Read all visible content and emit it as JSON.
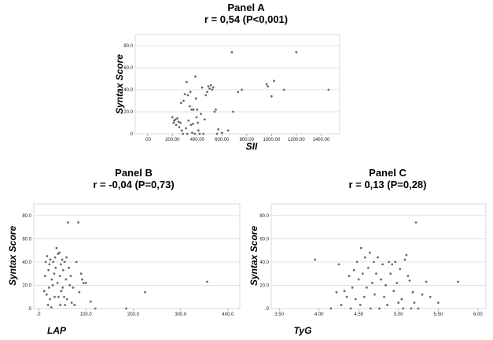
{
  "chart_data": [
    {
      "type": "scatter",
      "panel": "Panel A",
      "stat": "r = 0,54 (P<0,001)",
      "xlabel": "SII",
      "ylabel": "Syntax Score",
      "xlim": [
        -100,
        1550
      ],
      "ylim": [
        0,
        90
      ],
      "xticks": [
        0,
        200,
        400,
        600,
        800,
        1000,
        1200,
        1400
      ],
      "xtick_labels": [
        ".00",
        "200.00",
        "400.00",
        "600.00",
        "800.00",
        "1000.00",
        "1200.00",
        "1400.00"
      ],
      "yticks": [
        0,
        20,
        40,
        60,
        80
      ],
      "ytick_labels": [
        ".0",
        "20.0",
        "40.0",
        "60.0",
        "80.0"
      ],
      "grid": "horizontal",
      "points": [
        [
          200,
          15
        ],
        [
          210,
          10
        ],
        [
          215,
          12
        ],
        [
          225,
          13
        ],
        [
          230,
          8
        ],
        [
          240,
          14
        ],
        [
          250,
          11
        ],
        [
          255,
          6
        ],
        [
          265,
          10
        ],
        [
          270,
          28
        ],
        [
          275,
          3
        ],
        [
          285,
          0
        ],
        [
          290,
          30
        ],
        [
          300,
          36
        ],
        [
          310,
          5
        ],
        [
          315,
          47
        ],
        [
          320,
          0
        ],
        [
          325,
          35
        ],
        [
          330,
          12
        ],
        [
          340,
          25
        ],
        [
          345,
          38
        ],
        [
          350,
          8
        ],
        [
          355,
          22
        ],
        [
          360,
          1
        ],
        [
          365,
          9
        ],
        [
          370,
          22
        ],
        [
          380,
          0
        ],
        [
          385,
          52
        ],
        [
          390,
          32
        ],
        [
          395,
          15
        ],
        [
          400,
          22
        ],
        [
          405,
          10
        ],
        [
          410,
          3
        ],
        [
          420,
          0
        ],
        [
          430,
          18
        ],
        [
          440,
          42
        ],
        [
          450,
          0
        ],
        [
          460,
          13
        ],
        [
          470,
          35
        ],
        [
          480,
          38
        ],
        [
          490,
          43
        ],
        [
          500,
          41
        ],
        [
          510,
          44
        ],
        [
          520,
          40
        ],
        [
          530,
          42
        ],
        [
          540,
          20
        ],
        [
          550,
          22
        ],
        [
          560,
          0
        ],
        [
          570,
          4
        ],
        [
          600,
          1
        ],
        [
          650,
          3
        ],
        [
          680,
          74
        ],
        [
          690,
          20
        ],
        [
          730,
          38
        ],
        [
          760,
          40
        ],
        [
          960,
          45
        ],
        [
          970,
          43
        ],
        [
          1000,
          34
        ],
        [
          1020,
          48
        ],
        [
          1100,
          40
        ],
        [
          1200,
          74
        ],
        [
          1460,
          40
        ]
      ]
    },
    {
      "type": "scatter",
      "panel": "Panel B",
      "stat": "r = -0,04 (P=0,73)",
      "xlabel": "LAP",
      "ylabel": "Syntax Score",
      "xlim": [
        -10,
        425
      ],
      "ylim": [
        0,
        90
      ],
      "xticks": [
        0,
        100,
        200,
        300,
        400
      ],
      "xtick_labels": [
        ".0",
        "100.0",
        "200.0",
        "300.0",
        "400.0"
      ],
      "yticks": [
        0,
        20,
        40,
        60,
        80
      ],
      "ytick_labels": [
        ".0",
        "20.0",
        "40.0",
        "60.0",
        "80.0"
      ],
      "grid": "horizontal",
      "points": [
        [
          12,
          15
        ],
        [
          14,
          28
        ],
        [
          15,
          40
        ],
        [
          17,
          12
        ],
        [
          18,
          45
        ],
        [
          20,
          3
        ],
        [
          21,
          33
        ],
        [
          22,
          18
        ],
        [
          23,
          38
        ],
        [
          24,
          8
        ],
        [
          25,
          42
        ],
        [
          27,
          1
        ],
        [
          28,
          25
        ],
        [
          30,
          20
        ],
        [
          31,
          40
        ],
        [
          33,
          30
        ],
        [
          34,
          10
        ],
        [
          35,
          44
        ],
        [
          36,
          35
        ],
        [
          38,
          52
        ],
        [
          40,
          22
        ],
        [
          41,
          47
        ],
        [
          42,
          10
        ],
        [
          44,
          48
        ],
        [
          45,
          28
        ],
        [
          46,
          3
        ],
        [
          47,
          38
        ],
        [
          48,
          15
        ],
        [
          50,
          42
        ],
        [
          51,
          18
        ],
        [
          52,
          33
        ],
        [
          54,
          10
        ],
        [
          55,
          40
        ],
        [
          56,
          3
        ],
        [
          58,
          25
        ],
        [
          59,
          44
        ],
        [
          60,
          8
        ],
        [
          62,
          74
        ],
        [
          64,
          35
        ],
        [
          66,
          20
        ],
        [
          68,
          28
        ],
        [
          70,
          5
        ],
        [
          73,
          18
        ],
        [
          76,
          3
        ],
        [
          80,
          40
        ],
        [
          84,
          74
        ],
        [
          86,
          14
        ],
        [
          90,
          30
        ],
        [
          92,
          25
        ],
        [
          95,
          22
        ],
        [
          100,
          22
        ],
        [
          110,
          6
        ],
        [
          120,
          0
        ],
        [
          185,
          0
        ],
        [
          225,
          14
        ],
        [
          356,
          23
        ]
      ]
    },
    {
      "type": "scatter",
      "panel": "Panel C",
      "stat": "r = 0,13 (P=0,28)",
      "xlabel": "TyG",
      "ylabel": "Syntax Score",
      "xlim": [
        3.4,
        6.1
      ],
      "ylim": [
        0,
        90
      ],
      "xticks": [
        3.5,
        4.0,
        4.5,
        5.0,
        5.5,
        6.0
      ],
      "xtick_labels": [
        "3.50",
        "4.00",
        "4.50",
        "5.00",
        "5.50",
        "6.00"
      ],
      "yticks": [
        0,
        20,
        40,
        60,
        80
      ],
      "ytick_labels": [
        ".0",
        "20.0",
        "40.0",
        "60.0",
        "80.0"
      ],
      "grid": "horizontal",
      "points": [
        [
          3.95,
          42
        ],
        [
          4.15,
          0
        ],
        [
          4.22,
          14
        ],
        [
          4.25,
          38
        ],
        [
          4.28,
          3
        ],
        [
          4.32,
          15
        ],
        [
          4.35,
          10
        ],
        [
          4.38,
          28
        ],
        [
          4.4,
          0
        ],
        [
          4.42,
          18
        ],
        [
          4.44,
          33
        ],
        [
          4.46,
          8
        ],
        [
          4.48,
          40
        ],
        [
          4.5,
          25
        ],
        [
          4.52,
          3
        ],
        [
          4.53,
          52
        ],
        [
          4.55,
          30
        ],
        [
          4.57,
          10
        ],
        [
          4.58,
          44
        ],
        [
          4.6,
          18
        ],
        [
          4.62,
          35
        ],
        [
          4.64,
          48
        ],
        [
          4.65,
          0
        ],
        [
          4.67,
          22
        ],
        [
          4.69,
          40
        ],
        [
          4.7,
          12
        ],
        [
          4.72,
          30
        ],
        [
          4.74,
          44
        ],
        [
          4.76,
          0
        ],
        [
          4.78,
          25
        ],
        [
          4.8,
          38
        ],
        [
          4.82,
          10
        ],
        [
          4.84,
          20
        ],
        [
          4.86,
          3
        ],
        [
          4.88,
          40
        ],
        [
          4.9,
          30
        ],
        [
          4.92,
          38
        ],
        [
          4.94,
          15
        ],
        [
          4.96,
          40
        ],
        [
          4.98,
          22
        ],
        [
          5.0,
          5
        ],
        [
          5.02,
          34
        ],
        [
          5.04,
          8
        ],
        [
          5.06,
          0
        ],
        [
          5.08,
          42
        ],
        [
          5.1,
          46
        ],
        [
          5.12,
          28
        ],
        [
          5.14,
          24
        ],
        [
          5.16,
          0
        ],
        [
          5.18,
          14
        ],
        [
          5.2,
          5
        ],
        [
          5.22,
          74
        ],
        [
          5.25,
          0
        ],
        [
          5.3,
          12
        ],
        [
          5.35,
          23
        ],
        [
          5.4,
          10
        ],
        [
          5.5,
          5
        ],
        [
          5.75,
          23
        ]
      ]
    }
  ]
}
